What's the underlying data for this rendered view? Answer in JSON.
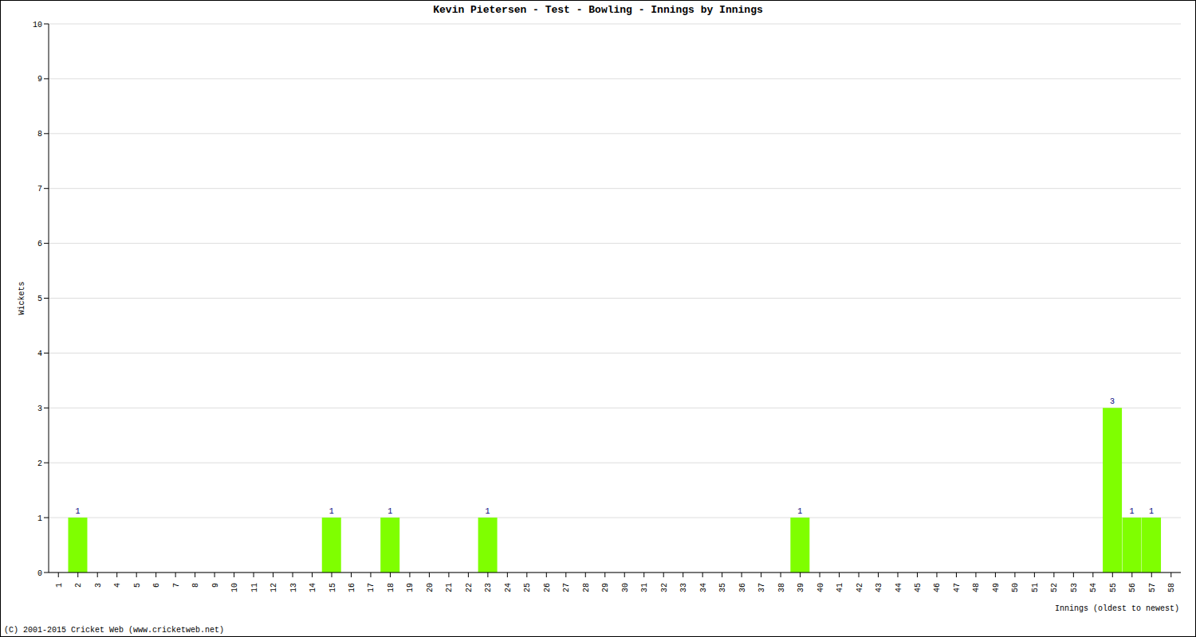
{
  "chart_data": {
    "type": "bar",
    "title": "Kevin Pietersen - Test - Bowling - Innings by Innings",
    "x_label": "Innings (oldest to newest)",
    "y_label": "Wickets",
    "annotations": [
      "(C) 2001-2015 Cricket Web (www.cricketweb.net)"
    ],
    "categories": [
      "1",
      "2",
      "3",
      "4",
      "5",
      "6",
      "7",
      "8",
      "9",
      "10",
      "11",
      "12",
      "13",
      "14",
      "15",
      "16",
      "17",
      "18",
      "19",
      "20",
      "21",
      "22",
      "23",
      "24",
      "25",
      "26",
      "27",
      "28",
      "29",
      "30",
      "31",
      "32",
      "33",
      "34",
      "35",
      "36",
      "37",
      "38",
      "39",
      "40",
      "41",
      "42",
      "43",
      "44",
      "45",
      "46",
      "47",
      "48",
      "49",
      "50",
      "51",
      "52",
      "53",
      "54",
      "55",
      "56",
      "57",
      "58"
    ],
    "values": [
      0,
      1,
      0,
      0,
      0,
      0,
      0,
      0,
      0,
      0,
      0,
      0,
      0,
      0,
      1,
      0,
      0,
      1,
      0,
      0,
      0,
      0,
      1,
      0,
      0,
      0,
      0,
      0,
      0,
      0,
      0,
      0,
      0,
      0,
      0,
      0,
      0,
      0,
      1,
      0,
      0,
      0,
      0,
      0,
      0,
      0,
      0,
      0,
      0,
      0,
      0,
      0,
      0,
      0,
      3,
      1,
      1,
      0
    ],
    "color": "#7fff00",
    "ylim": [
      0,
      10
    ],
    "yticks": [
      0,
      1,
      2,
      3,
      4,
      5,
      6,
      7,
      8,
      9,
      10
    ],
    "grid": true,
    "data_labels": true
  }
}
